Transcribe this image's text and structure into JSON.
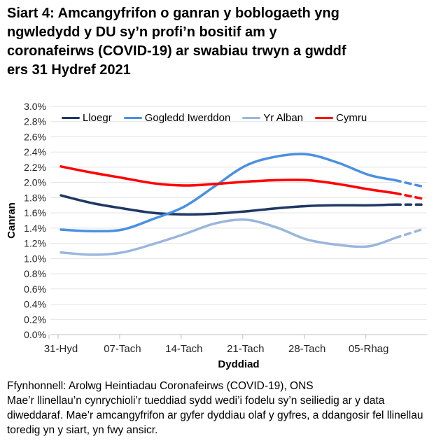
{
  "title_lines": [
    "Siart 4: Amcangyfrifon o ganran y boblogaeth yng",
    "ngwledydd y DU sy’n profi’n bositif am y",
    "coronafeirws (COVID-19) ar swabiau trwyn a gwddf",
    "ers 31 Hydref 2021"
  ],
  "footer": {
    "source": "Ffynhonnell: Arolwg Heintiadau Coronafeirws (COVID-19), ONS",
    "note_lines": [
      "Mae’r llinellau’n cynrychioli’r tueddiad sydd wedi’i fodelu sy’n seiliedig ar y data",
      "diweddaraf. Mae’r amcangyfrifon ar gyfer dyddiau olaf y gyfres, a ddangosir fel llinellau",
      "toredig yn y siart, yn fwy ansicr."
    ]
  },
  "chart_data": {
    "type": "line",
    "title": "Siart 4: Amcangyfrifon o ganran y boblogaeth yng ngwledydd y DU sy’n profi’n bositif am y coronafeirws (COVID-19) ar swabiau trwyn a gwddf ers 31 Hydref 2021",
    "xlabel": "Dyddiad",
    "ylabel": "Canran",
    "ylim": [
      0.0,
      3.0
    ],
    "y_tick_step": 0.2,
    "y_tick_labels": [
      "0.0%",
      "0.2%",
      "0.4%",
      "0.6%",
      "0.8%",
      "1.0%",
      "1.2%",
      "1.4%",
      "1.6%",
      "1.8%",
      "2.0%",
      "2.2%",
      "2.4%",
      "2.6%",
      "2.8%",
      "3.0%"
    ],
    "x_ticks": [
      {
        "label": "31-Hyd",
        "day": 0
      },
      {
        "label": "07-Tach",
        "day": 7
      },
      {
        "label": "14-Tach",
        "day": 14
      },
      {
        "label": "21-Tach",
        "day": 21
      },
      {
        "label": "28-Tach",
        "day": 28
      },
      {
        "label": "05-Rhag",
        "day": 35
      }
    ],
    "x_domain_days": [
      0,
      41
    ],
    "sample_days": [
      0,
      3.5,
      7,
      10.5,
      14,
      17.5,
      21,
      24.5,
      28,
      31.5,
      35,
      38,
      41
    ],
    "dashed_from_day": 38,
    "grid": true,
    "legend_position": "top-inside",
    "units": "percent",
    "series": [
      {
        "name": "Lloegr",
        "color": "#1F3864",
        "values": [
          1.83,
          1.73,
          1.66,
          1.6,
          1.58,
          1.59,
          1.62,
          1.66,
          1.69,
          1.7,
          1.7,
          1.71,
          1.71
        ]
      },
      {
        "name": "Gogledd Iwerddon",
        "color": "#4A90E2",
        "values": [
          1.38,
          1.36,
          1.38,
          1.52,
          1.68,
          1.95,
          2.22,
          2.34,
          2.37,
          2.26,
          2.1,
          2.03,
          1.95
        ]
      },
      {
        "name": "Yr Alban",
        "color": "#9BB6DC",
        "values": [
          1.08,
          1.05,
          1.08,
          1.19,
          1.32,
          1.46,
          1.51,
          1.41,
          1.25,
          1.18,
          1.16,
          1.27,
          1.38
        ]
      },
      {
        "name": "Cymru",
        "color": "#FF0000",
        "values": [
          2.21,
          2.13,
          2.06,
          1.99,
          1.96,
          1.98,
          2.01,
          2.03,
          2.03,
          1.98,
          1.91,
          1.86,
          1.79
        ]
      }
    ],
    "style": {
      "grid_color": "#E3E3E3",
      "axis_color": "#BFBFBF",
      "tick_text_color": "#262626",
      "line_width": 3.5
    }
  }
}
